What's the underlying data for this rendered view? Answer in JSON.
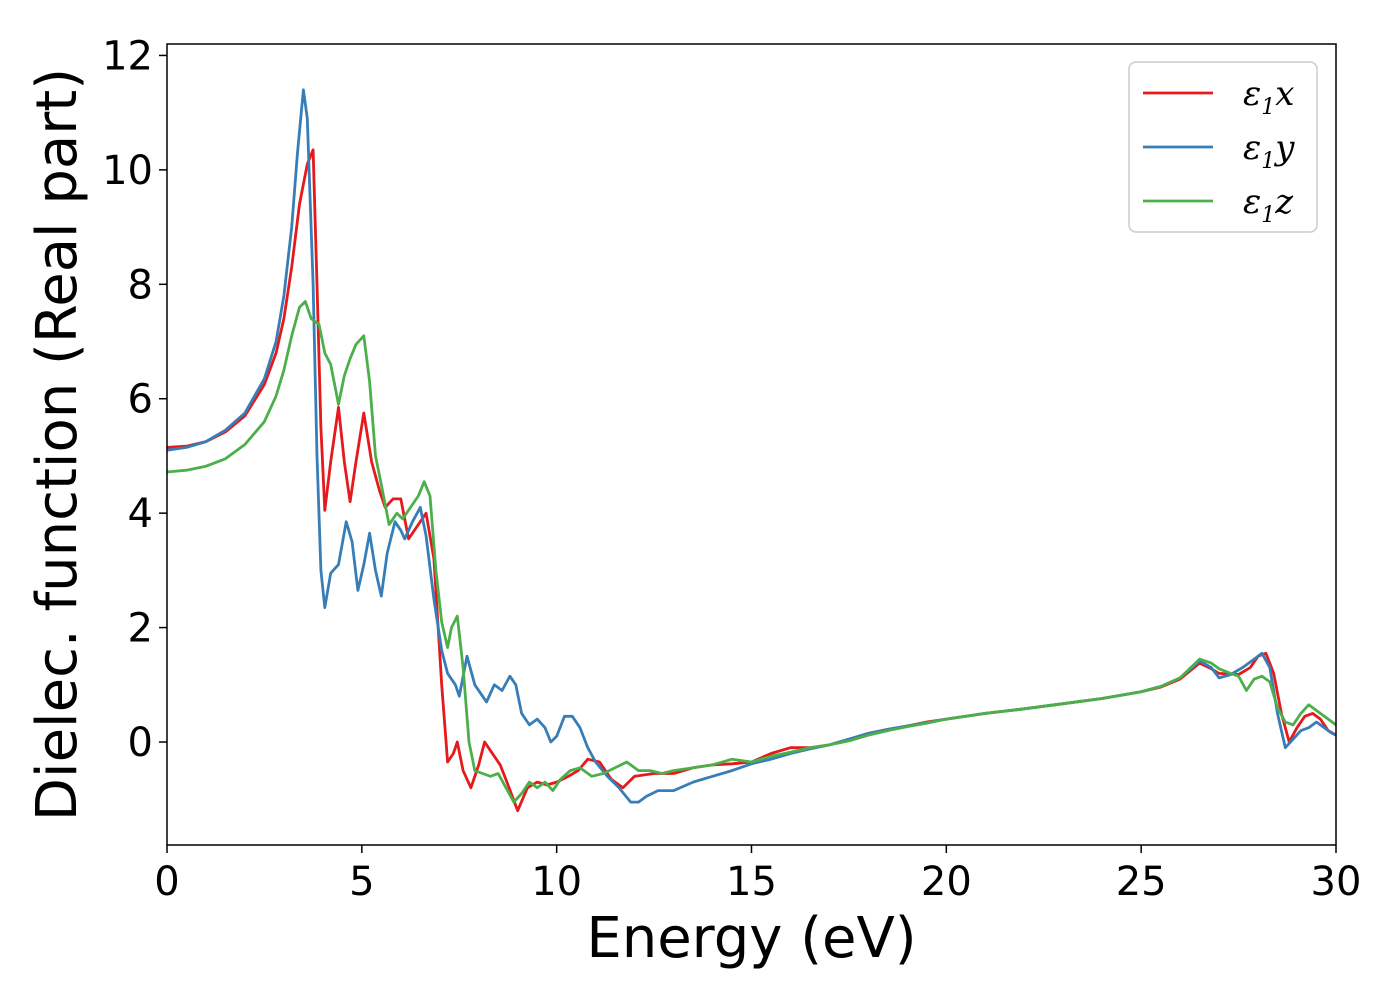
{
  "chart_data": {
    "type": "line",
    "title": "",
    "xlabel": "Energy (eV)",
    "ylabel": "Dielec. function (Real part)",
    "xlim": [
      0,
      30
    ],
    "ylim": [
      -1.8,
      12.2
    ],
    "xticks": [
      0,
      5,
      10,
      15,
      20,
      25,
      30
    ],
    "yticks": [
      0,
      2,
      4,
      6,
      8,
      10,
      12
    ],
    "grid": false,
    "legend_position": "top-right",
    "series": [
      {
        "name": "ε1x",
        "label_main": "ε",
        "label_sub": "1",
        "label_var": "x",
        "color": "#e41a1c",
        "points": [
          [
            0,
            5.15
          ],
          [
            0.5,
            5.17
          ],
          [
            1,
            5.25
          ],
          [
            1.5,
            5.42
          ],
          [
            2,
            5.7
          ],
          [
            2.5,
            6.25
          ],
          [
            2.8,
            6.8
          ],
          [
            3.0,
            7.4
          ],
          [
            3.2,
            8.3
          ],
          [
            3.4,
            9.4
          ],
          [
            3.6,
            10.1
          ],
          [
            3.75,
            10.35
          ],
          [
            3.85,
            8.0
          ],
          [
            3.95,
            5.5
          ],
          [
            4.05,
            4.05
          ],
          [
            4.2,
            4.9
          ],
          [
            4.4,
            5.85
          ],
          [
            4.55,
            4.9
          ],
          [
            4.7,
            4.2
          ],
          [
            4.85,
            4.9
          ],
          [
            5.05,
            5.75
          ],
          [
            5.25,
            4.9
          ],
          [
            5.45,
            4.4
          ],
          [
            5.6,
            4.1
          ],
          [
            5.8,
            4.25
          ],
          [
            6.0,
            4.25
          ],
          [
            6.2,
            3.55
          ],
          [
            6.45,
            3.8
          ],
          [
            6.65,
            4.0
          ],
          [
            6.85,
            3.2
          ],
          [
            7.05,
            1.0
          ],
          [
            7.2,
            -0.35
          ],
          [
            7.35,
            -0.2
          ],
          [
            7.45,
            0.0
          ],
          [
            7.6,
            -0.5
          ],
          [
            7.8,
            -0.8
          ],
          [
            8.0,
            -0.4
          ],
          [
            8.15,
            0.0
          ],
          [
            8.35,
            -0.2
          ],
          [
            8.55,
            -0.4
          ],
          [
            8.75,
            -0.75
          ],
          [
            9.0,
            -1.2
          ],
          [
            9.25,
            -0.8
          ],
          [
            9.5,
            -0.7
          ],
          [
            9.75,
            -0.75
          ],
          [
            10.0,
            -0.7
          ],
          [
            10.3,
            -0.6
          ],
          [
            10.55,
            -0.5
          ],
          [
            10.8,
            -0.3
          ],
          [
            11.1,
            -0.35
          ],
          [
            11.4,
            -0.65
          ],
          [
            11.7,
            -0.8
          ],
          [
            12.0,
            -0.6
          ],
          [
            12.5,
            -0.55
          ],
          [
            13.0,
            -0.55
          ],
          [
            13.5,
            -0.45
          ],
          [
            14.0,
            -0.4
          ],
          [
            14.5,
            -0.38
          ],
          [
            15.0,
            -0.35
          ],
          [
            15.5,
            -0.2
          ],
          [
            16.0,
            -0.1
          ],
          [
            16.5,
            -0.1
          ],
          [
            17.0,
            -0.05
          ],
          [
            17.5,
            0.05
          ],
          [
            18.0,
            0.15
          ],
          [
            18.5,
            0.22
          ],
          [
            19.0,
            0.28
          ],
          [
            19.5,
            0.35
          ],
          [
            20.0,
            0.4
          ],
          [
            21.0,
            0.5
          ],
          [
            22.0,
            0.58
          ],
          [
            23.0,
            0.67
          ],
          [
            24.0,
            0.76
          ],
          [
            25.0,
            0.88
          ],
          [
            25.5,
            0.96
          ],
          [
            26.0,
            1.1
          ],
          [
            26.5,
            1.38
          ],
          [
            26.8,
            1.28
          ],
          [
            27.0,
            1.2
          ],
          [
            27.5,
            1.18
          ],
          [
            27.8,
            1.3
          ],
          [
            28.0,
            1.5
          ],
          [
            28.2,
            1.55
          ],
          [
            28.4,
            1.2
          ],
          [
            28.6,
            0.5
          ],
          [
            28.8,
            0.0
          ],
          [
            29.0,
            0.25
          ],
          [
            29.2,
            0.45
          ],
          [
            29.4,
            0.5
          ],
          [
            29.6,
            0.4
          ],
          [
            29.8,
            0.2
          ],
          [
            30.0,
            0.12
          ]
        ]
      },
      {
        "name": "ε1y",
        "label_main": "ε",
        "label_sub": "1",
        "label_var": "y",
        "color": "#377eb8",
        "points": [
          [
            0,
            5.1
          ],
          [
            0.5,
            5.15
          ],
          [
            1,
            5.25
          ],
          [
            1.5,
            5.45
          ],
          [
            2,
            5.75
          ],
          [
            2.5,
            6.35
          ],
          [
            2.8,
            7.0
          ],
          [
            3.0,
            7.8
          ],
          [
            3.2,
            9.0
          ],
          [
            3.35,
            10.3
          ],
          [
            3.5,
            11.4
          ],
          [
            3.6,
            10.9
          ],
          [
            3.75,
            8.0
          ],
          [
            3.85,
            5.0
          ],
          [
            3.95,
            3.0
          ],
          [
            4.05,
            2.35
          ],
          [
            4.2,
            2.95
          ],
          [
            4.4,
            3.1
          ],
          [
            4.6,
            3.85
          ],
          [
            4.75,
            3.5
          ],
          [
            4.9,
            2.65
          ],
          [
            5.05,
            3.1
          ],
          [
            5.2,
            3.65
          ],
          [
            5.35,
            3.0
          ],
          [
            5.5,
            2.55
          ],
          [
            5.65,
            3.3
          ],
          [
            5.85,
            3.85
          ],
          [
            6.0,
            3.7
          ],
          [
            6.1,
            3.55
          ],
          [
            6.3,
            3.85
          ],
          [
            6.5,
            4.1
          ],
          [
            6.65,
            3.6
          ],
          [
            6.85,
            2.5
          ],
          [
            7.05,
            1.6
          ],
          [
            7.2,
            1.2
          ],
          [
            7.4,
            1.0
          ],
          [
            7.5,
            0.8
          ],
          [
            7.7,
            1.5
          ],
          [
            7.9,
            1.0
          ],
          [
            8.05,
            0.85
          ],
          [
            8.2,
            0.7
          ],
          [
            8.4,
            1.0
          ],
          [
            8.6,
            0.9
          ],
          [
            8.8,
            1.15
          ],
          [
            8.95,
            1.0
          ],
          [
            9.1,
            0.5
          ],
          [
            9.3,
            0.3
          ],
          [
            9.5,
            0.4
          ],
          [
            9.7,
            0.25
          ],
          [
            9.85,
            0.0
          ],
          [
            10.0,
            0.1
          ],
          [
            10.2,
            0.45
          ],
          [
            10.4,
            0.45
          ],
          [
            10.6,
            0.25
          ],
          [
            10.8,
            -0.1
          ],
          [
            11.0,
            -0.35
          ],
          [
            11.3,
            -0.6
          ],
          [
            11.6,
            -0.8
          ],
          [
            11.9,
            -1.05
          ],
          [
            12.1,
            -1.05
          ],
          [
            12.3,
            -0.95
          ],
          [
            12.6,
            -0.85
          ],
          [
            13.0,
            -0.85
          ],
          [
            13.5,
            -0.7
          ],
          [
            14.0,
            -0.6
          ],
          [
            14.5,
            -0.5
          ],
          [
            15.0,
            -0.38
          ],
          [
            15.5,
            -0.3
          ],
          [
            16.0,
            -0.2
          ],
          [
            16.5,
            -0.12
          ],
          [
            17.0,
            -0.05
          ],
          [
            17.5,
            0.05
          ],
          [
            18.0,
            0.15
          ],
          [
            18.5,
            0.22
          ],
          [
            19.0,
            0.28
          ],
          [
            19.5,
            0.34
          ],
          [
            20.0,
            0.4
          ],
          [
            21.0,
            0.5
          ],
          [
            22.0,
            0.58
          ],
          [
            23.0,
            0.67
          ],
          [
            24.0,
            0.76
          ],
          [
            25.0,
            0.88
          ],
          [
            25.5,
            0.97
          ],
          [
            26.0,
            1.12
          ],
          [
            26.5,
            1.42
          ],
          [
            26.8,
            1.3
          ],
          [
            27.0,
            1.12
          ],
          [
            27.3,
            1.18
          ],
          [
            27.6,
            1.3
          ],
          [
            27.9,
            1.45
          ],
          [
            28.1,
            1.55
          ],
          [
            28.3,
            1.3
          ],
          [
            28.5,
            0.5
          ],
          [
            28.7,
            -0.1
          ],
          [
            28.9,
            0.05
          ],
          [
            29.1,
            0.2
          ],
          [
            29.3,
            0.25
          ],
          [
            29.5,
            0.35
          ],
          [
            29.7,
            0.25
          ],
          [
            29.9,
            0.15
          ],
          [
            30.0,
            0.12
          ]
        ]
      },
      {
        "name": "ε1z",
        "label_main": "ε",
        "label_sub": "1",
        "label_var": "z",
        "color": "#4daf4a",
        "points": [
          [
            0,
            4.72
          ],
          [
            0.5,
            4.75
          ],
          [
            1,
            4.82
          ],
          [
            1.5,
            4.95
          ],
          [
            2,
            5.2
          ],
          [
            2.5,
            5.6
          ],
          [
            2.8,
            6.05
          ],
          [
            3.0,
            6.5
          ],
          [
            3.2,
            7.1
          ],
          [
            3.4,
            7.6
          ],
          [
            3.55,
            7.7
          ],
          [
            3.7,
            7.4
          ],
          [
            3.9,
            7.3
          ],
          [
            4.05,
            6.8
          ],
          [
            4.2,
            6.6
          ],
          [
            4.4,
            5.9
          ],
          [
            4.55,
            6.4
          ],
          [
            4.7,
            6.7
          ],
          [
            4.85,
            6.95
          ],
          [
            5.05,
            7.1
          ],
          [
            5.2,
            6.3
          ],
          [
            5.35,
            5.0
          ],
          [
            5.5,
            4.5
          ],
          [
            5.7,
            3.8
          ],
          [
            5.9,
            4.0
          ],
          [
            6.05,
            3.9
          ],
          [
            6.25,
            4.1
          ],
          [
            6.45,
            4.3
          ],
          [
            6.6,
            4.55
          ],
          [
            6.75,
            4.3
          ],
          [
            6.9,
            3.0
          ],
          [
            7.05,
            2.1
          ],
          [
            7.2,
            1.65
          ],
          [
            7.3,
            2.0
          ],
          [
            7.45,
            2.2
          ],
          [
            7.6,
            1.3
          ],
          [
            7.75,
            0.0
          ],
          [
            7.9,
            -0.5
          ],
          [
            8.1,
            -0.55
          ],
          [
            8.3,
            -0.6
          ],
          [
            8.5,
            -0.55
          ],
          [
            8.7,
            -0.8
          ],
          [
            8.9,
            -1.05
          ],
          [
            9.1,
            -0.9
          ],
          [
            9.3,
            -0.7
          ],
          [
            9.5,
            -0.8
          ],
          [
            9.7,
            -0.7
          ],
          [
            9.9,
            -0.85
          ],
          [
            10.1,
            -0.65
          ],
          [
            10.35,
            -0.5
          ],
          [
            10.6,
            -0.45
          ],
          [
            10.9,
            -0.6
          ],
          [
            11.2,
            -0.55
          ],
          [
            11.5,
            -0.45
          ],
          [
            11.8,
            -0.35
          ],
          [
            12.1,
            -0.5
          ],
          [
            12.4,
            -0.5
          ],
          [
            12.7,
            -0.55
          ],
          [
            13.0,
            -0.5
          ],
          [
            13.5,
            -0.45
          ],
          [
            14.0,
            -0.4
          ],
          [
            14.5,
            -0.3
          ],
          [
            15.0,
            -0.35
          ],
          [
            15.5,
            -0.25
          ],
          [
            16.0,
            -0.18
          ],
          [
            16.5,
            -0.1
          ],
          [
            17.0,
            -0.05
          ],
          [
            17.5,
            0.02
          ],
          [
            18.0,
            0.12
          ],
          [
            18.5,
            0.2
          ],
          [
            19.0,
            0.27
          ],
          [
            19.5,
            0.33
          ],
          [
            20.0,
            0.4
          ],
          [
            21.0,
            0.5
          ],
          [
            22.0,
            0.58
          ],
          [
            23.0,
            0.67
          ],
          [
            24.0,
            0.76
          ],
          [
            25.0,
            0.88
          ],
          [
            25.5,
            0.97
          ],
          [
            26.0,
            1.12
          ],
          [
            26.5,
            1.45
          ],
          [
            26.8,
            1.38
          ],
          [
            27.0,
            1.28
          ],
          [
            27.3,
            1.2
          ],
          [
            27.5,
            1.15
          ],
          [
            27.7,
            0.9
          ],
          [
            27.9,
            1.1
          ],
          [
            28.1,
            1.15
          ],
          [
            28.3,
            1.05
          ],
          [
            28.5,
            0.6
          ],
          [
            28.7,
            0.35
          ],
          [
            28.9,
            0.3
          ],
          [
            29.1,
            0.5
          ],
          [
            29.3,
            0.65
          ],
          [
            29.5,
            0.55
          ],
          [
            29.7,
            0.45
          ],
          [
            29.9,
            0.35
          ],
          [
            30.0,
            0.3
          ]
        ]
      }
    ]
  }
}
